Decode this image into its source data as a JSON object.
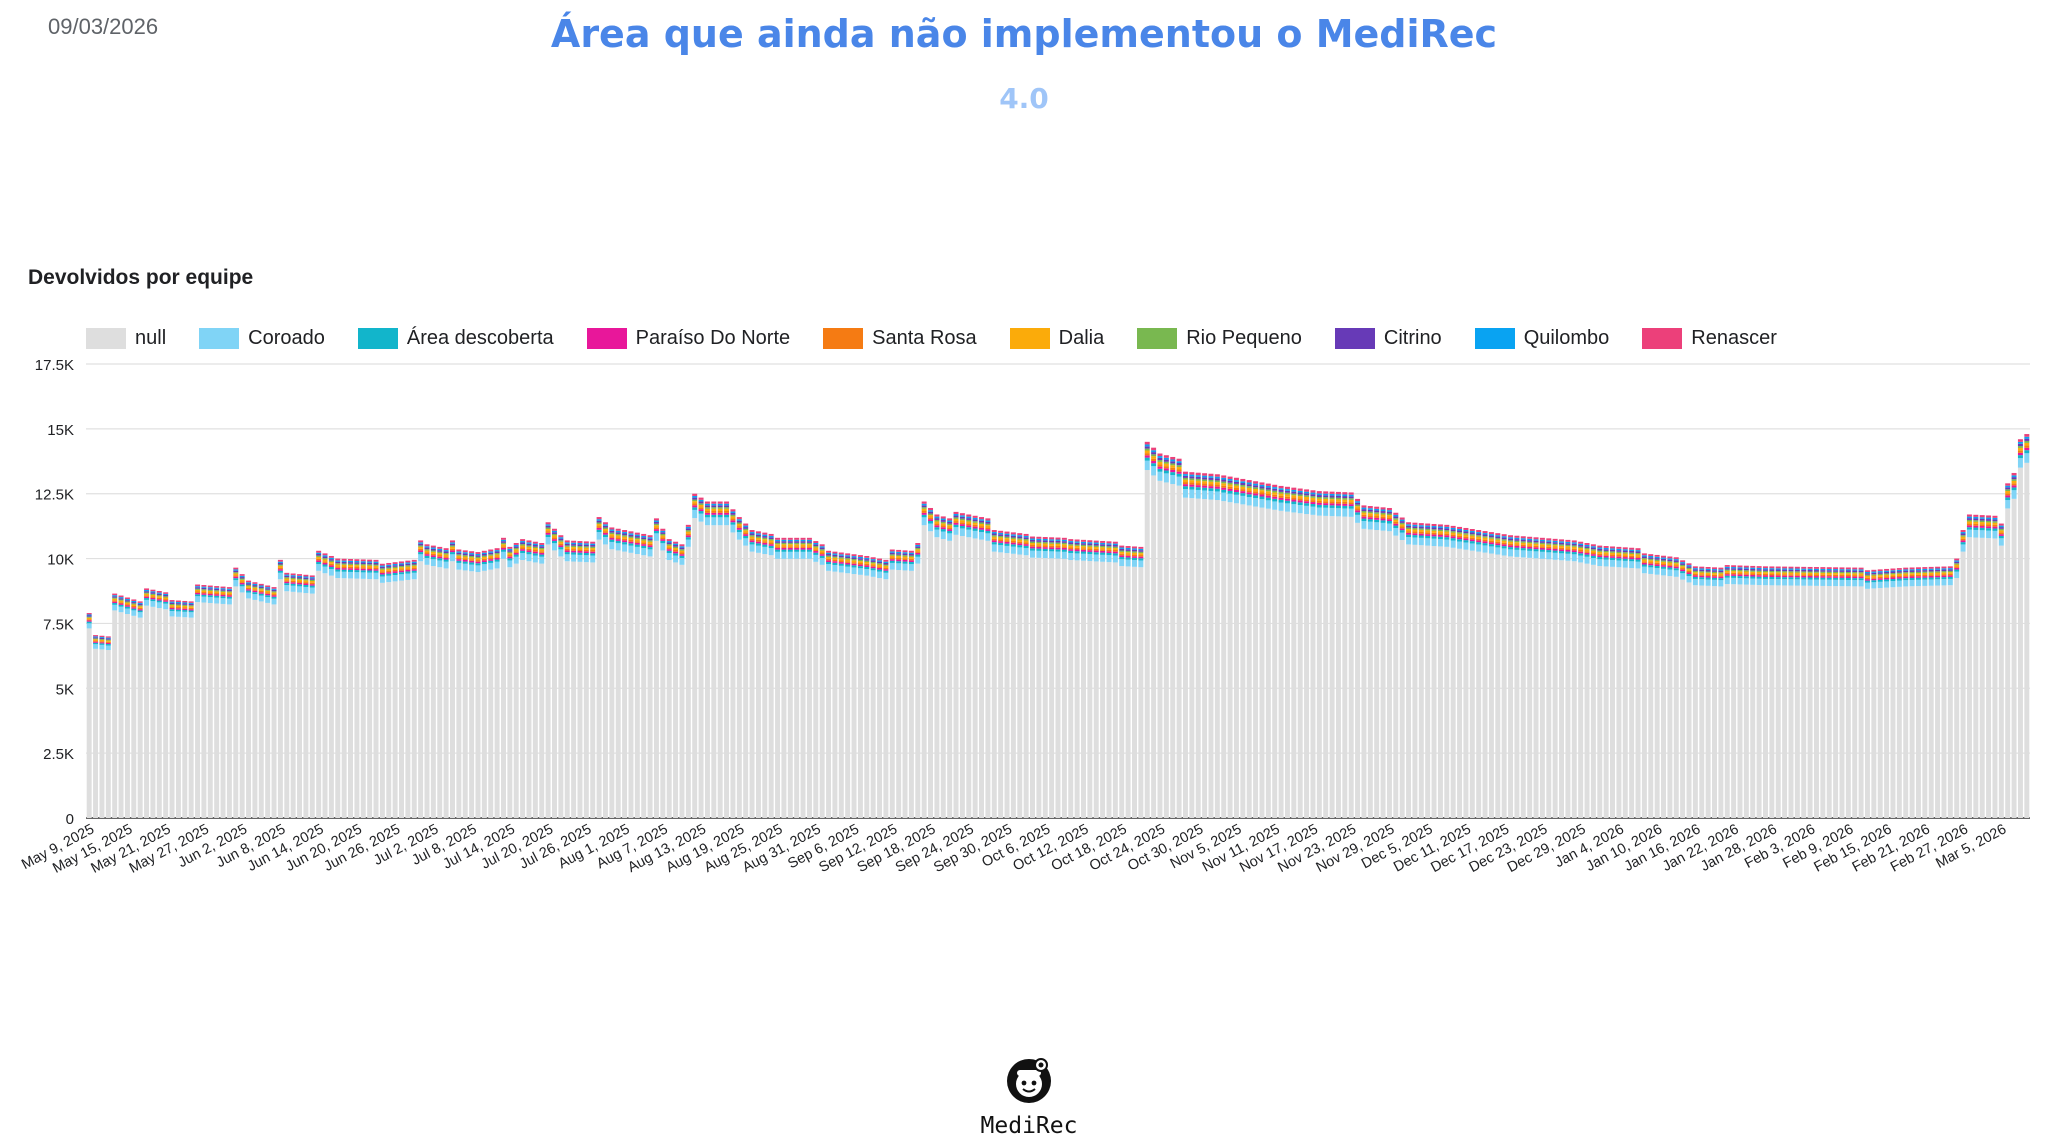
{
  "header": {
    "date": "09/03/2026",
    "title": "Área que ainda não implementou o MediRec",
    "subtitle": "4.0"
  },
  "footer": {
    "logo_name": "MediRec"
  },
  "chart_data": {
    "type": "bar",
    "stacked": true,
    "title": "Devolvidos por equipe",
    "xlabel": "",
    "ylabel": "",
    "ylim": [
      0,
      17500
    ],
    "y_ticks": [
      0,
      2500,
      5000,
      7500,
      10000,
      12500,
      15000,
      17500
    ],
    "y_tick_labels": [
      "0",
      "2.5K",
      "5K",
      "7.5K",
      "10K",
      "12.5K",
      "15K",
      "17.5K"
    ],
    "grid": true,
    "legend_position": "top",
    "x_start": "2025-05-09",
    "x_end": "2026-03-09",
    "x_ticks": [
      "May 9, 2025",
      "May 15, 2025",
      "May 21, 2025",
      "May 27, 2025",
      "Jun 2, 2025",
      "Jun 8, 2025",
      "Jun 14, 2025",
      "Jun 20, 2025",
      "Jun 26, 2025",
      "Jul 2, 2025",
      "Jul 8, 2025",
      "Jul 14, 2025",
      "Jul 20, 2025",
      "Jul 26, 2025",
      "Aug 1, 2025",
      "Aug 7, 2025",
      "Aug 13, 2025",
      "Aug 19, 2025",
      "Aug 25, 2025",
      "Aug 31, 2025",
      "Sep 6, 2025",
      "Sep 12, 2025",
      "Sep 18, 2025",
      "Sep 24, 2025",
      "Sep 30, 2025",
      "Oct 6, 2025",
      "Oct 12, 2025",
      "Oct 18, 2025",
      "Oct 24, 2025",
      "Oct 30, 2025",
      "Nov 5, 2025",
      "Nov 11, 2025",
      "Nov 17, 2025",
      "Nov 23, 2025",
      "Nov 29, 2025",
      "Dec 5, 2025",
      "Dec 11, 2025",
      "Dec 17, 2025",
      "Dec 23, 2025",
      "Dec 29, 2025",
      "Jan 4, 2026",
      "Jan 10, 2026",
      "Jan 16, 2026",
      "Jan 22, 2026",
      "Jan 28, 2026",
      "Feb 3, 2026",
      "Feb 9, 2026",
      "Feb 15, 2026",
      "Feb 21, 2026",
      "Feb 27, 2026",
      "Mar 5, 2026"
    ],
    "total_keypoints": [
      [
        "2025-05-09",
        7900
      ],
      [
        "2025-05-10",
        7050
      ],
      [
        "2025-05-12",
        7000
      ],
      [
        "2025-05-13",
        8650
      ],
      [
        "2025-05-17",
        8350
      ],
      [
        "2025-05-18",
        8850
      ],
      [
        "2025-05-21",
        8700
      ],
      [
        "2025-05-22",
        8400
      ],
      [
        "2025-05-25",
        8350
      ],
      [
        "2025-05-26",
        9000
      ],
      [
        "2025-05-31",
        8900
      ],
      [
        "2025-06-01",
        9650
      ],
      [
        "2025-06-03",
        9150
      ],
      [
        "2025-06-07",
        8900
      ],
      [
        "2025-06-08",
        9950
      ],
      [
        "2025-06-09",
        9450
      ],
      [
        "2025-06-13",
        9350
      ],
      [
        "2025-06-14",
        10300
      ],
      [
        "2025-06-17",
        10000
      ],
      [
        "2025-06-23",
        9950
      ],
      [
        "2025-06-24",
        9800
      ],
      [
        "2025-06-29",
        9950
      ],
      [
        "2025-06-30",
        10700
      ],
      [
        "2025-07-01",
        10550
      ],
      [
        "2025-07-04",
        10400
      ],
      [
        "2025-07-05",
        10700
      ],
      [
        "2025-07-06",
        10350
      ],
      [
        "2025-07-09",
        10250
      ],
      [
        "2025-07-12",
        10400
      ],
      [
        "2025-07-13",
        10800
      ],
      [
        "2025-07-14",
        10450
      ],
      [
        "2025-07-16",
        10750
      ],
      [
        "2025-07-19",
        10600
      ],
      [
        "2025-07-20",
        11400
      ],
      [
        "2025-07-22",
        10900
      ],
      [
        "2025-07-23",
        10700
      ],
      [
        "2025-07-27",
        10650
      ],
      [
        "2025-07-28",
        11600
      ],
      [
        "2025-07-30",
        11200
      ],
      [
        "2025-08-02",
        11050
      ],
      [
        "2025-08-05",
        10900
      ],
      [
        "2025-08-06",
        11550
      ],
      [
        "2025-08-08",
        10750
      ],
      [
        "2025-08-10",
        10550
      ],
      [
        "2025-08-11",
        11300
      ],
      [
        "2025-08-12",
        12500
      ],
      [
        "2025-08-14",
        12200
      ],
      [
        "2025-08-17",
        12200
      ],
      [
        "2025-08-19",
        11600
      ],
      [
        "2025-08-21",
        11100
      ],
      [
        "2025-08-24",
        10950
      ],
      [
        "2025-08-25",
        10800
      ],
      [
        "2025-08-30",
        10800
      ],
      [
        "2025-09-01",
        10550
      ],
      [
        "2025-09-02",
        10300
      ],
      [
        "2025-09-08",
        10100
      ],
      [
        "2025-09-11",
        9950
      ],
      [
        "2025-09-12",
        10350
      ],
      [
        "2025-09-15",
        10300
      ],
      [
        "2025-09-16",
        10600
      ],
      [
        "2025-09-17",
        12200
      ],
      [
        "2025-09-19",
        11700
      ],
      [
        "2025-09-21",
        11550
      ],
      [
        "2025-09-22",
        11800
      ],
      [
        "2025-09-27",
        11550
      ],
      [
        "2025-09-28",
        11100
      ],
      [
        "2025-10-03",
        10950
      ],
      [
        "2025-10-04",
        10850
      ],
      [
        "2025-10-09",
        10800
      ],
      [
        "2025-10-10",
        10750
      ],
      [
        "2025-10-17",
        10650
      ],
      [
        "2025-10-18",
        10500
      ],
      [
        "2025-10-21",
        10450
      ],
      [
        "2025-10-22",
        14500
      ],
      [
        "2025-10-24",
        14050
      ],
      [
        "2025-10-27",
        13850
      ],
      [
        "2025-10-28",
        13350
      ],
      [
        "2025-11-02",
        13250
      ],
      [
        "2025-11-12",
        12800
      ],
      [
        "2025-11-18",
        12600
      ],
      [
        "2025-11-23",
        12550
      ],
      [
        "2025-11-25",
        12050
      ],
      [
        "2025-11-29",
        11950
      ],
      [
        "2025-12-02",
        11400
      ],
      [
        "2025-12-08",
        11300
      ],
      [
        "2025-12-13",
        11100
      ],
      [
        "2025-12-18",
        10900
      ],
      [
        "2025-12-28",
        10700
      ],
      [
        "2026-01-01",
        10500
      ],
      [
        "2026-01-07",
        10400
      ],
      [
        "2026-01-08",
        10200
      ],
      [
        "2026-01-13",
        10050
      ],
      [
        "2026-01-16",
        9700
      ],
      [
        "2026-01-20",
        9650
      ],
      [
        "2026-01-21",
        9750
      ],
      [
        "2026-01-27",
        9700
      ],
      [
        "2026-02-11",
        9650
      ],
      [
        "2026-02-12",
        9550
      ],
      [
        "2026-02-18",
        9650
      ],
      [
        "2026-02-25",
        9700
      ],
      [
        "2026-02-26",
        10000
      ],
      [
        "2026-02-27",
        11100
      ],
      [
        "2026-02-28",
        11700
      ],
      [
        "2026-03-04",
        11650
      ],
      [
        "2026-03-05",
        11350
      ],
      [
        "2026-03-06",
        12900
      ],
      [
        "2026-03-07",
        13300
      ],
      [
        "2026-03-08",
        14600
      ],
      [
        "2026-03-09",
        14800
      ]
    ],
    "series": [
      {
        "name": "null",
        "color": "#dedede",
        "share": 0.925
      },
      {
        "name": "Coroado",
        "color": "#80d4f6",
        "share": 0.025
      },
      {
        "name": "Área descoberta",
        "color": "#12b5cb",
        "share": 0.008
      },
      {
        "name": "Paraíso Do Norte",
        "color": "#e8179a",
        "share": 0.006
      },
      {
        "name": "Santa Rosa",
        "color": "#f57b13",
        "share": 0.006
      },
      {
        "name": "Dalia",
        "color": "#fbab0a",
        "share": 0.007
      },
      {
        "name": "Rio Pequeno",
        "color": "#79b850",
        "share": 0.005
      },
      {
        "name": "Citrino",
        "color": "#673ab7",
        "share": 0.006
      },
      {
        "name": "Quilombo",
        "color": "#09a3f2",
        "share": 0.005
      },
      {
        "name": "Renascer",
        "color": "#ec407a",
        "share": 0.007
      }
    ]
  }
}
